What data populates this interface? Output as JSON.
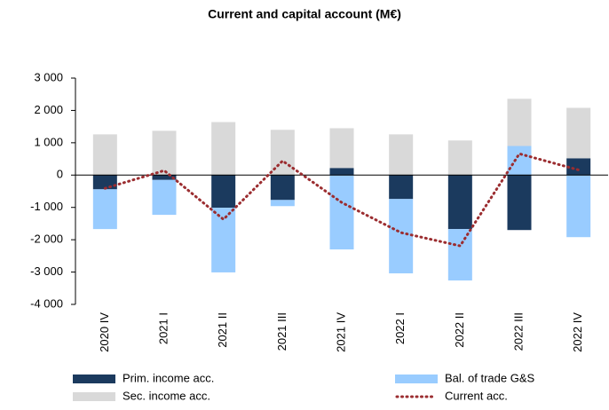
{
  "chart_data": {
    "type": "bar",
    "stacked": true,
    "title": "Current and capital account (M€)",
    "categories": [
      "2020 IV",
      "2021 I",
      "2021 II",
      "2021 III",
      "2021 IV",
      "2022 I",
      "2022 II",
      "2022 III",
      "2022 IV"
    ],
    "series": [
      {
        "name": "Prim. income acc.",
        "color": "#1b3a5e",
        "values": [
          -440,
          -150,
          -1010,
          -770,
          220,
          -740,
          -1670,
          -1700,
          520
        ]
      },
      {
        "name": "Bal. of trade G&S",
        "color": "#99ccff",
        "values": [
          -1230,
          -1080,
          -2000,
          -190,
          -2300,
          -2300,
          -1590,
          900,
          -1920
        ]
      },
      {
        "name": "Sec. income acc.",
        "color": "#d9d9d9",
        "values": [
          1260,
          1370,
          1640,
          1400,
          1230,
          1260,
          1070,
          1460,
          1560
        ]
      },
      {
        "name": "Current acc.",
        "color": "#9b2d30",
        "type": "line",
        "values": [
          -410,
          140,
          -1370,
          440,
          -850,
          -1780,
          -2190,
          660,
          160
        ]
      }
    ],
    "ylim": [
      -4000,
      3000
    ],
    "yticks": [
      {
        "value": -4000,
        "label": "-4 000"
      },
      {
        "value": -3000,
        "label": "-3 000"
      },
      {
        "value": -2000,
        "label": "-2 000"
      },
      {
        "value": -1000,
        "label": "-1 000"
      },
      0,
      {
        "value": 1000,
        "label": "1 000"
      },
      {
        "value": 2000,
        "label": "2 000"
      },
      {
        "value": 3000,
        "label": "3 000"
      }
    ]
  }
}
